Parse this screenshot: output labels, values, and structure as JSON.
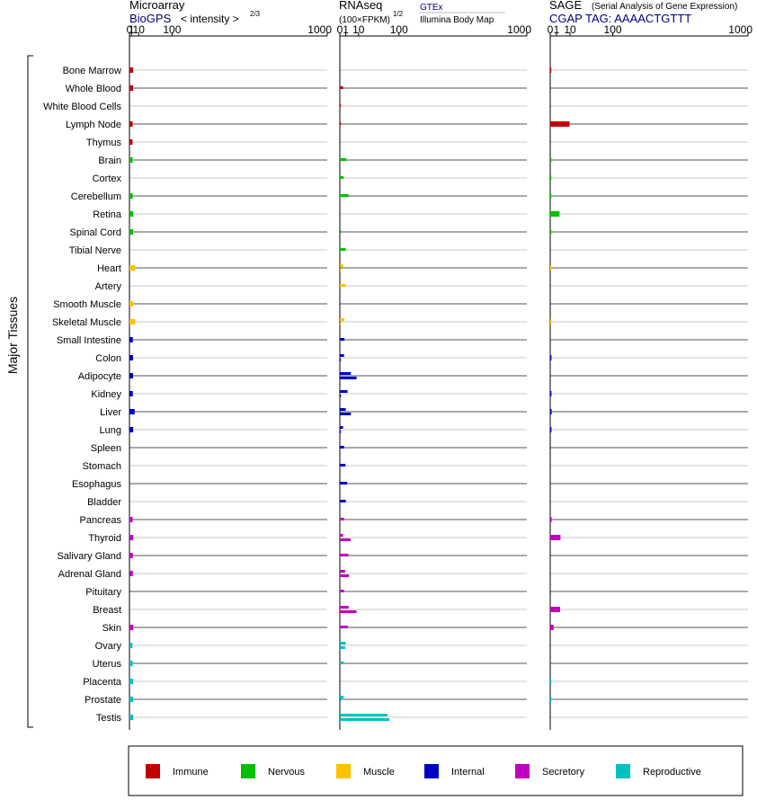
{
  "panels": {
    "microarray": {
      "title": "Microarray",
      "subtitle": "BioGPS",
      "scale_label": "< intensity >",
      "scale_exp": "2/3"
    },
    "rnaseq": {
      "title": "RNAseq",
      "scale_label": "(100×FPKM)",
      "scale_exp": "1/2",
      "source1": "GTEx",
      "source2": "Illumina Body Map"
    },
    "sage": {
      "title": "SAGE",
      "title_note": "(Serial Analysis of Gene Expression)",
      "subtitle": "CGAP TAG: AAAACTGTTT"
    }
  },
  "y_group_label": "Major Tissues",
  "axis_ticks": [
    "0",
    "1",
    "10",
    "100",
    "1000"
  ],
  "legend": [
    {
      "label": "Immune",
      "color": "#c00000"
    },
    {
      "label": "Nervous",
      "color": "#00c000"
    },
    {
      "label": "Muscle",
      "color": "#ffc000"
    },
    {
      "label": "Internal",
      "color": "#0000c0"
    },
    {
      "label": "Secretory",
      "color": "#c000c0"
    },
    {
      "label": "Reproductive",
      "color": "#00c0c0"
    }
  ],
  "chart_data": {
    "type": "bar",
    "scale": "power (microarray 2/3, RNAseq 1/2)",
    "categories": [
      "Bone Marrow",
      "Whole Blood",
      "White Blood Cells",
      "Lymph Node",
      "Thymus",
      "Brain",
      "Cortex",
      "Cerebellum",
      "Retina",
      "Spinal Cord",
      "Tibial Nerve",
      "Heart",
      "Artery",
      "Smooth Muscle",
      "Skeletal Muscle",
      "Small Intestine",
      "Colon",
      "Adipocyte",
      "Kidney",
      "Liver",
      "Lung",
      "Spleen",
      "Stomach",
      "Esophagus",
      "Bladder",
      "Pancreas",
      "Thyroid",
      "Salivary Gland",
      "Adrenal Gland",
      "Pituitary",
      "Breast",
      "Skin",
      "Ovary",
      "Uterus",
      "Placenta",
      "Prostate",
      "Testis"
    ],
    "groups": [
      0,
      0,
      0,
      0,
      0,
      1,
      1,
      1,
      1,
      1,
      1,
      2,
      2,
      2,
      2,
      3,
      3,
      3,
      3,
      3,
      3,
      3,
      3,
      3,
      3,
      4,
      4,
      4,
      4,
      4,
      4,
      4,
      5,
      5,
      5,
      5,
      5
    ],
    "xlim": [
      0,
      1000
    ],
    "microarray": [
      2.5,
      2.5,
      null,
      2.0,
      1.9,
      2.0,
      null,
      2.0,
      2.6,
      2.5,
      null,
      5.0,
      null,
      2.6,
      5.0,
      2.2,
      2.4,
      2.4,
      2.2,
      4.2,
      2.6,
      null,
      null,
      null,
      null,
      2.0,
      2.6,
      2.2,
      2.2,
      null,
      null,
      2.7,
      1.8,
      2.0,
      2.4,
      2.6,
      2.6
    ],
    "rnaseq_gtex": [
      null,
      0.3,
      0.01,
      0.01,
      null,
      1.2,
      0.4,
      2.2,
      null,
      0.05,
      1.0,
      0.3,
      0.9,
      null,
      0.6,
      0.6,
      0.5,
      3.5,
      1.7,
      1.0,
      0.3,
      0.5,
      0.9,
      1.5,
      1.0,
      0.5,
      0.3,
      2.1,
      0.8,
      0.5,
      2.2,
      1.8,
      1.0,
      0.4,
      null,
      0.4,
      65
    ],
    "rnaseq_ibm": [
      null,
      null,
      null,
      null,
      null,
      null,
      null,
      null,
      null,
      null,
      null,
      0.01,
      null,
      null,
      0.01,
      null,
      0.01,
      8,
      0.01,
      3.5,
      0.01,
      null,
      null,
      null,
      null,
      null,
      3.3,
      null,
      2.4,
      null,
      8,
      null,
      0.8,
      null,
      null,
      0.01,
      70
    ],
    "sage": [
      0.02,
      null,
      null,
      9.5,
      null,
      0.02,
      0.01,
      0.01,
      2.2,
      0.01,
      null,
      0.01,
      null,
      null,
      0.01,
      null,
      0.04,
      null,
      0.04,
      0.05,
      0.04,
      null,
      null,
      null,
      null,
      0.05,
      2.7,
      null,
      null,
      null,
      2.5,
      0.3,
      null,
      null,
      0.02,
      0.02,
      null
    ]
  }
}
